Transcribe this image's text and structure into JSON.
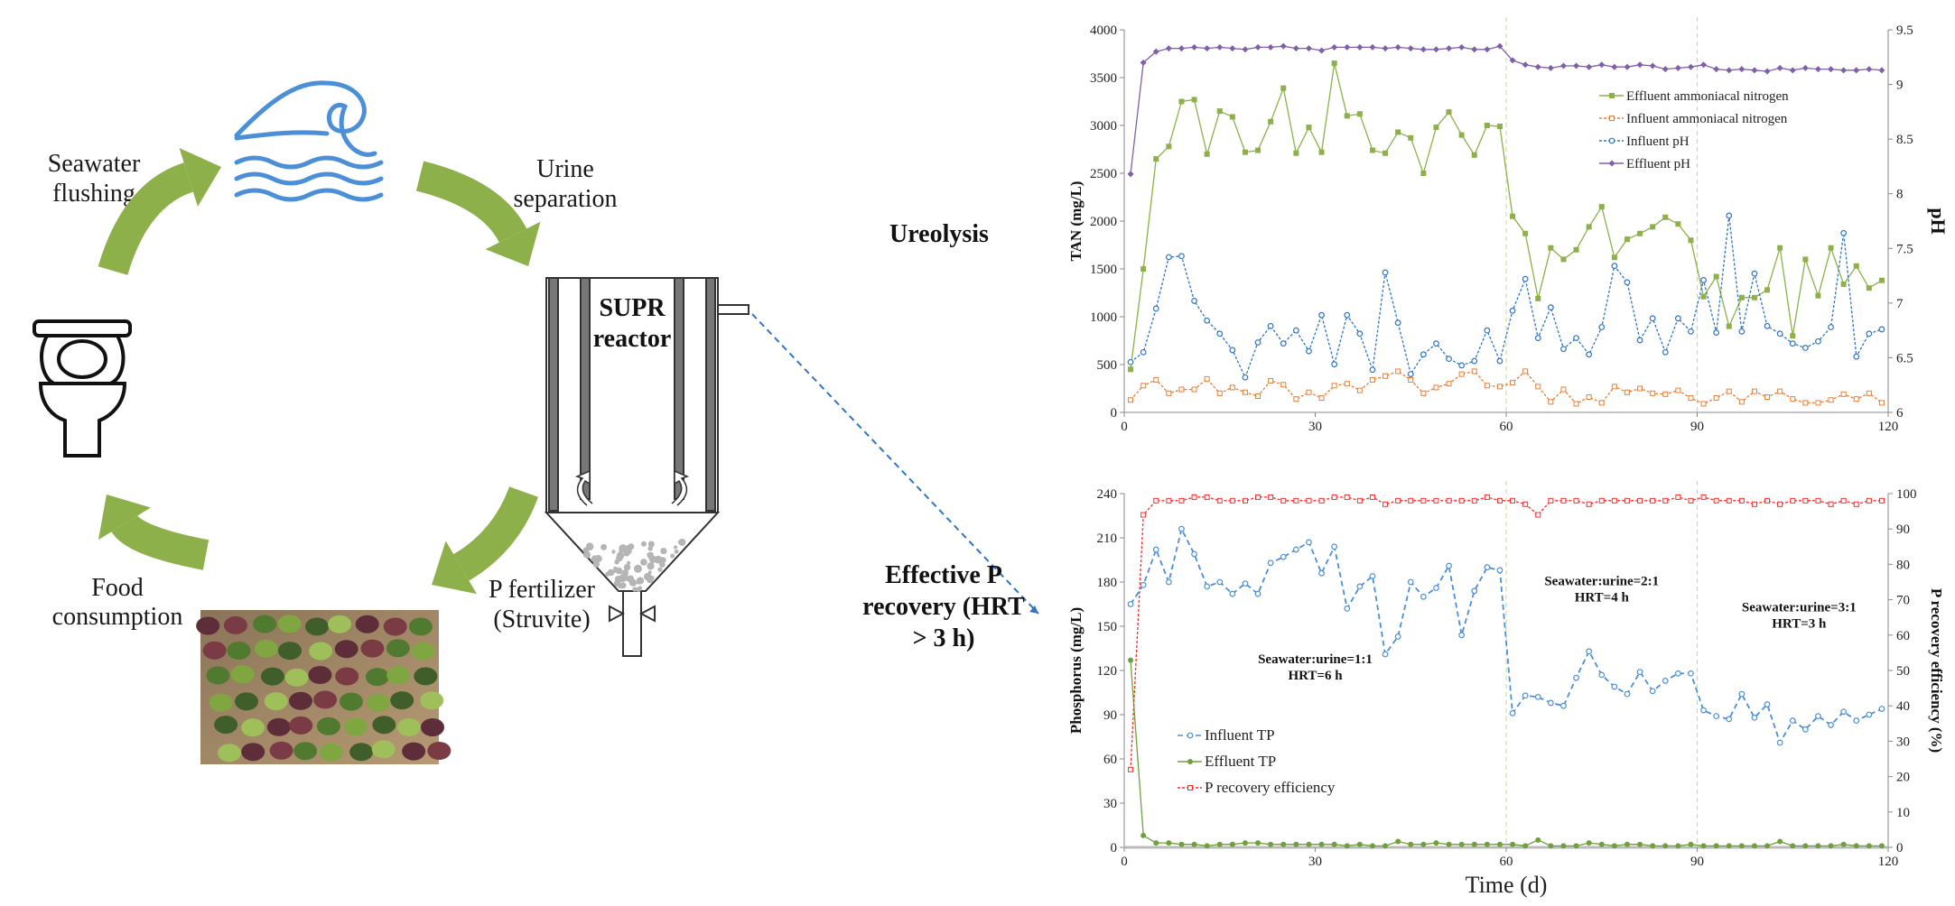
{
  "diagram": {
    "seawater_flushing": [
      "Seawater",
      "flushing"
    ],
    "urine_separation": [
      "Urine",
      "separation"
    ],
    "reactor": [
      "SUPR",
      "reactor"
    ],
    "p_fertilizer": [
      "P fertilizer",
      "(Struvite)"
    ],
    "food_consumption": [
      "Food",
      "consumption"
    ],
    "ureolysis": "Ureolysis",
    "effective_p_recovery": [
      "Effective P",
      "recovery (HRT",
      "> 3 h)"
    ],
    "arrow_color": "#8db04a",
    "wave_color": "#4a8fd8"
  },
  "chart_data": [
    {
      "type": "line",
      "title": "",
      "xlabel": "",
      "ylabel": "TAN (mg/L)",
      "ylabel_right": "pH",
      "xlim": [
        0,
        120
      ],
      "xticks": [
        0,
        30,
        60,
        90,
        120
      ],
      "ylim": [
        0,
        4000
      ],
      "yticks": [
        0,
        500,
        1000,
        1500,
        2000,
        2500,
        3000,
        3500,
        4000
      ],
      "ylim_right": [
        6,
        9.5
      ],
      "yticks_right": [
        6,
        6.5,
        7,
        7.5,
        8,
        8.5,
        9,
        9.5
      ],
      "vlines": [
        60,
        90
      ],
      "legend_position": "top-right",
      "x": [
        1,
        3,
        5,
        7,
        9,
        11,
        13,
        15,
        17,
        19,
        21,
        23,
        25,
        27,
        29,
        31,
        33,
        35,
        37,
        39,
        41,
        43,
        45,
        47,
        49,
        51,
        53,
        55,
        57,
        59,
        61,
        63,
        65,
        67,
        69,
        71,
        73,
        75,
        77,
        79,
        81,
        83,
        85,
        87,
        89,
        91,
        93,
        95,
        97,
        99,
        101,
        103,
        105,
        107,
        109,
        111,
        113,
        115,
        117,
        119
      ],
      "series": [
        {
          "name": "Effluent ammoniacal nitrogen",
          "axis": "left",
          "color": "#8db04a",
          "marker": "square",
          "dash": "",
          "values": [
            450,
            1500,
            2650,
            2780,
            3250,
            3270,
            2700,
            3150,
            3090,
            2720,
            2740,
            3040,
            3390,
            2710,
            2980,
            2720,
            3650,
            3100,
            3120,
            2740,
            2710,
            2930,
            2870,
            2500,
            2980,
            3140,
            2900,
            2690,
            3000,
            2990,
            2050,
            1870,
            1190,
            1720,
            1600,
            1700,
            1940,
            2150,
            1620,
            1810,
            1870,
            1940,
            2040,
            1970,
            1800,
            1210,
            1420,
            900,
            1200,
            1200,
            1280,
            1720,
            800,
            1600,
            1220,
            1720,
            1340,
            1530,
            1300,
            1380
          ]
        },
        {
          "name": "Influent ammoniacal nitrogen",
          "axis": "left",
          "color": "#ed7d31",
          "marker": "open-square",
          "dash": "3,2",
          "values": [
            130,
            280,
            340,
            200,
            240,
            240,
            350,
            200,
            260,
            210,
            170,
            330,
            290,
            140,
            210,
            150,
            280,
            300,
            230,
            340,
            380,
            430,
            340,
            200,
            260,
            300,
            400,
            430,
            280,
            270,
            310,
            430,
            270,
            110,
            240,
            90,
            160,
            100,
            270,
            210,
            250,
            200,
            190,
            230,
            150,
            90,
            150,
            220,
            110,
            220,
            160,
            220,
            140,
            100,
            100,
            130,
            190,
            140,
            200,
            100
          ]
        },
        {
          "name": "Influent pH",
          "axis": "right",
          "color": "#2e75c6",
          "marker": "open-circle",
          "dash": "3,2",
          "values": [
            6.46,
            6.55,
            6.95,
            7.42,
            7.43,
            7.02,
            6.84,
            6.72,
            6.57,
            6.32,
            6.64,
            6.79,
            6.63,
            6.75,
            6.56,
            6.89,
            6.44,
            6.89,
            6.72,
            6.39,
            7.28,
            6.82,
            6.35,
            6.53,
            6.63,
            6.49,
            6.43,
            6.47,
            6.75,
            6.47,
            6.93,
            7.22,
            6.68,
            6.96,
            6.58,
            6.68,
            6.53,
            6.78,
            7.34,
            7.19,
            6.66,
            6.86,
            6.55,
            6.86,
            6.74,
            7.21,
            6.73,
            7.8,
            6.74,
            7.27,
            6.79,
            6.72,
            6.63,
            6.59,
            6.65,
            6.78,
            7.64,
            6.51,
            6.72,
            6.76
          ]
        },
        {
          "name": "Effluent pH",
          "axis": "right",
          "color": "#7f5fa8",
          "marker": "diamond",
          "dash": "",
          "values": [
            8.18,
            9.2,
            9.3,
            9.33,
            9.33,
            9.34,
            9.33,
            9.34,
            9.33,
            9.32,
            9.34,
            9.34,
            9.35,
            9.33,
            9.33,
            9.31,
            9.34,
            9.34,
            9.34,
            9.34,
            9.33,
            9.34,
            9.33,
            9.32,
            9.32,
            9.33,
            9.34,
            9.32,
            9.32,
            9.35,
            9.22,
            9.18,
            9.16,
            9.15,
            9.17,
            9.17,
            9.16,
            9.18,
            9.16,
            9.16,
            9.18,
            9.17,
            9.14,
            9.15,
            9.16,
            9.18,
            9.14,
            9.13,
            9.14,
            9.13,
            9.12,
            9.15,
            9.13,
            9.15,
            9.14,
            9.14,
            9.13,
            9.13,
            9.14,
            9.13
          ]
        }
      ]
    },
    {
      "type": "line",
      "title": "",
      "xlabel": "Time (d)",
      "ylabel": "Phosphorus (mg/L)",
      "ylabel_right": "P recovery efficiency (%)",
      "xlim": [
        0,
        120
      ],
      "xticks": [
        0,
        30,
        60,
        90,
        120
      ],
      "ylim": [
        0,
        240
      ],
      "yticks": [
        0,
        30,
        60,
        90,
        120,
        150,
        180,
        210,
        240
      ],
      "ylim_right": [
        0,
        100
      ],
      "yticks_right": [
        0,
        10,
        20,
        30,
        40,
        50,
        60,
        70,
        80,
        90,
        100
      ],
      "vlines": [
        60,
        90
      ],
      "legend_position": "bottom-left",
      "annotations": [
        {
          "lines": [
            "Seawater:urine=1:1",
            "HRT=6 h"
          ],
          "x": 30,
          "y": 125
        },
        {
          "lines": [
            "Seawater:urine=2:1",
            "HRT=4 h"
          ],
          "x": 75,
          "y": 178
        },
        {
          "lines": [
            "Seawater:urine=3:1",
            "HRT=3 h"
          ],
          "x": 106,
          "y": 160
        }
      ],
      "x": [
        1,
        3,
        5,
        7,
        9,
        11,
        13,
        15,
        17,
        19,
        21,
        23,
        25,
        27,
        29,
        31,
        33,
        35,
        37,
        39,
        41,
        43,
        45,
        47,
        49,
        51,
        53,
        55,
        57,
        59,
        61,
        63,
        65,
        67,
        69,
        71,
        73,
        75,
        77,
        79,
        81,
        83,
        85,
        87,
        89,
        91,
        93,
        95,
        97,
        99,
        101,
        103,
        105,
        107,
        109,
        111,
        113,
        115,
        117,
        119
      ],
      "series": [
        {
          "name": "Influent TP",
          "axis": "left",
          "color": "#4a8fd8",
          "marker": "open-circle",
          "dash": "6,4",
          "values": [
            165,
            178,
            202,
            180,
            216,
            199,
            177,
            180,
            172,
            179,
            172,
            193,
            197,
            202,
            207,
            186,
            204,
            162,
            177,
            184,
            131,
            143,
            180,
            170,
            176,
            191,
            144,
            174,
            190,
            188,
            91,
            103,
            102,
            98,
            96,
            115,
            133,
            117,
            109,
            104,
            119,
            106,
            113,
            118,
            118,
            93,
            89,
            87,
            104,
            88,
            97,
            71,
            86,
            80,
            89,
            83,
            92,
            86,
            90,
            94
          ]
        },
        {
          "name": "Effluent TP",
          "axis": "left",
          "color": "#70a03c",
          "marker": "dot",
          "dash": "",
          "values": [
            127,
            8,
            3,
            3,
            2,
            2,
            1,
            2,
            2,
            3,
            3,
            2,
            2,
            2,
            2,
            2,
            2,
            1,
            2,
            1,
            1,
            4,
            2,
            2,
            3,
            2,
            2,
            2,
            2,
            2,
            2,
            1,
            5,
            1,
            1,
            1,
            3,
            2,
            1,
            2,
            2,
            1,
            1,
            1,
            2,
            1,
            1,
            1,
            1,
            1,
            1,
            4,
            1,
            1,
            1,
            1,
            2,
            1,
            1,
            1
          ]
        },
        {
          "name": "P recovery efficiency",
          "axis": "right",
          "color": "#ff2a2a",
          "marker": "open-square",
          "dash": "3,2",
          "values": [
            22,
            94,
            98,
            98,
            98,
            99,
            99,
            98,
            98,
            98,
            99,
            99,
            98,
            98,
            98,
            98,
            99,
            99,
            98,
            99,
            97,
            98,
            98,
            98,
            98,
            98,
            98,
            98,
            99,
            98,
            98,
            97,
            94,
            98,
            98,
            98,
            97,
            98,
            98,
            98,
            98,
            98,
            98,
            99,
            98,
            99,
            98,
            98,
            98,
            97,
            98,
            97,
            98,
            98,
            98,
            97,
            98,
            97,
            98,
            98
          ]
        }
      ]
    }
  ]
}
